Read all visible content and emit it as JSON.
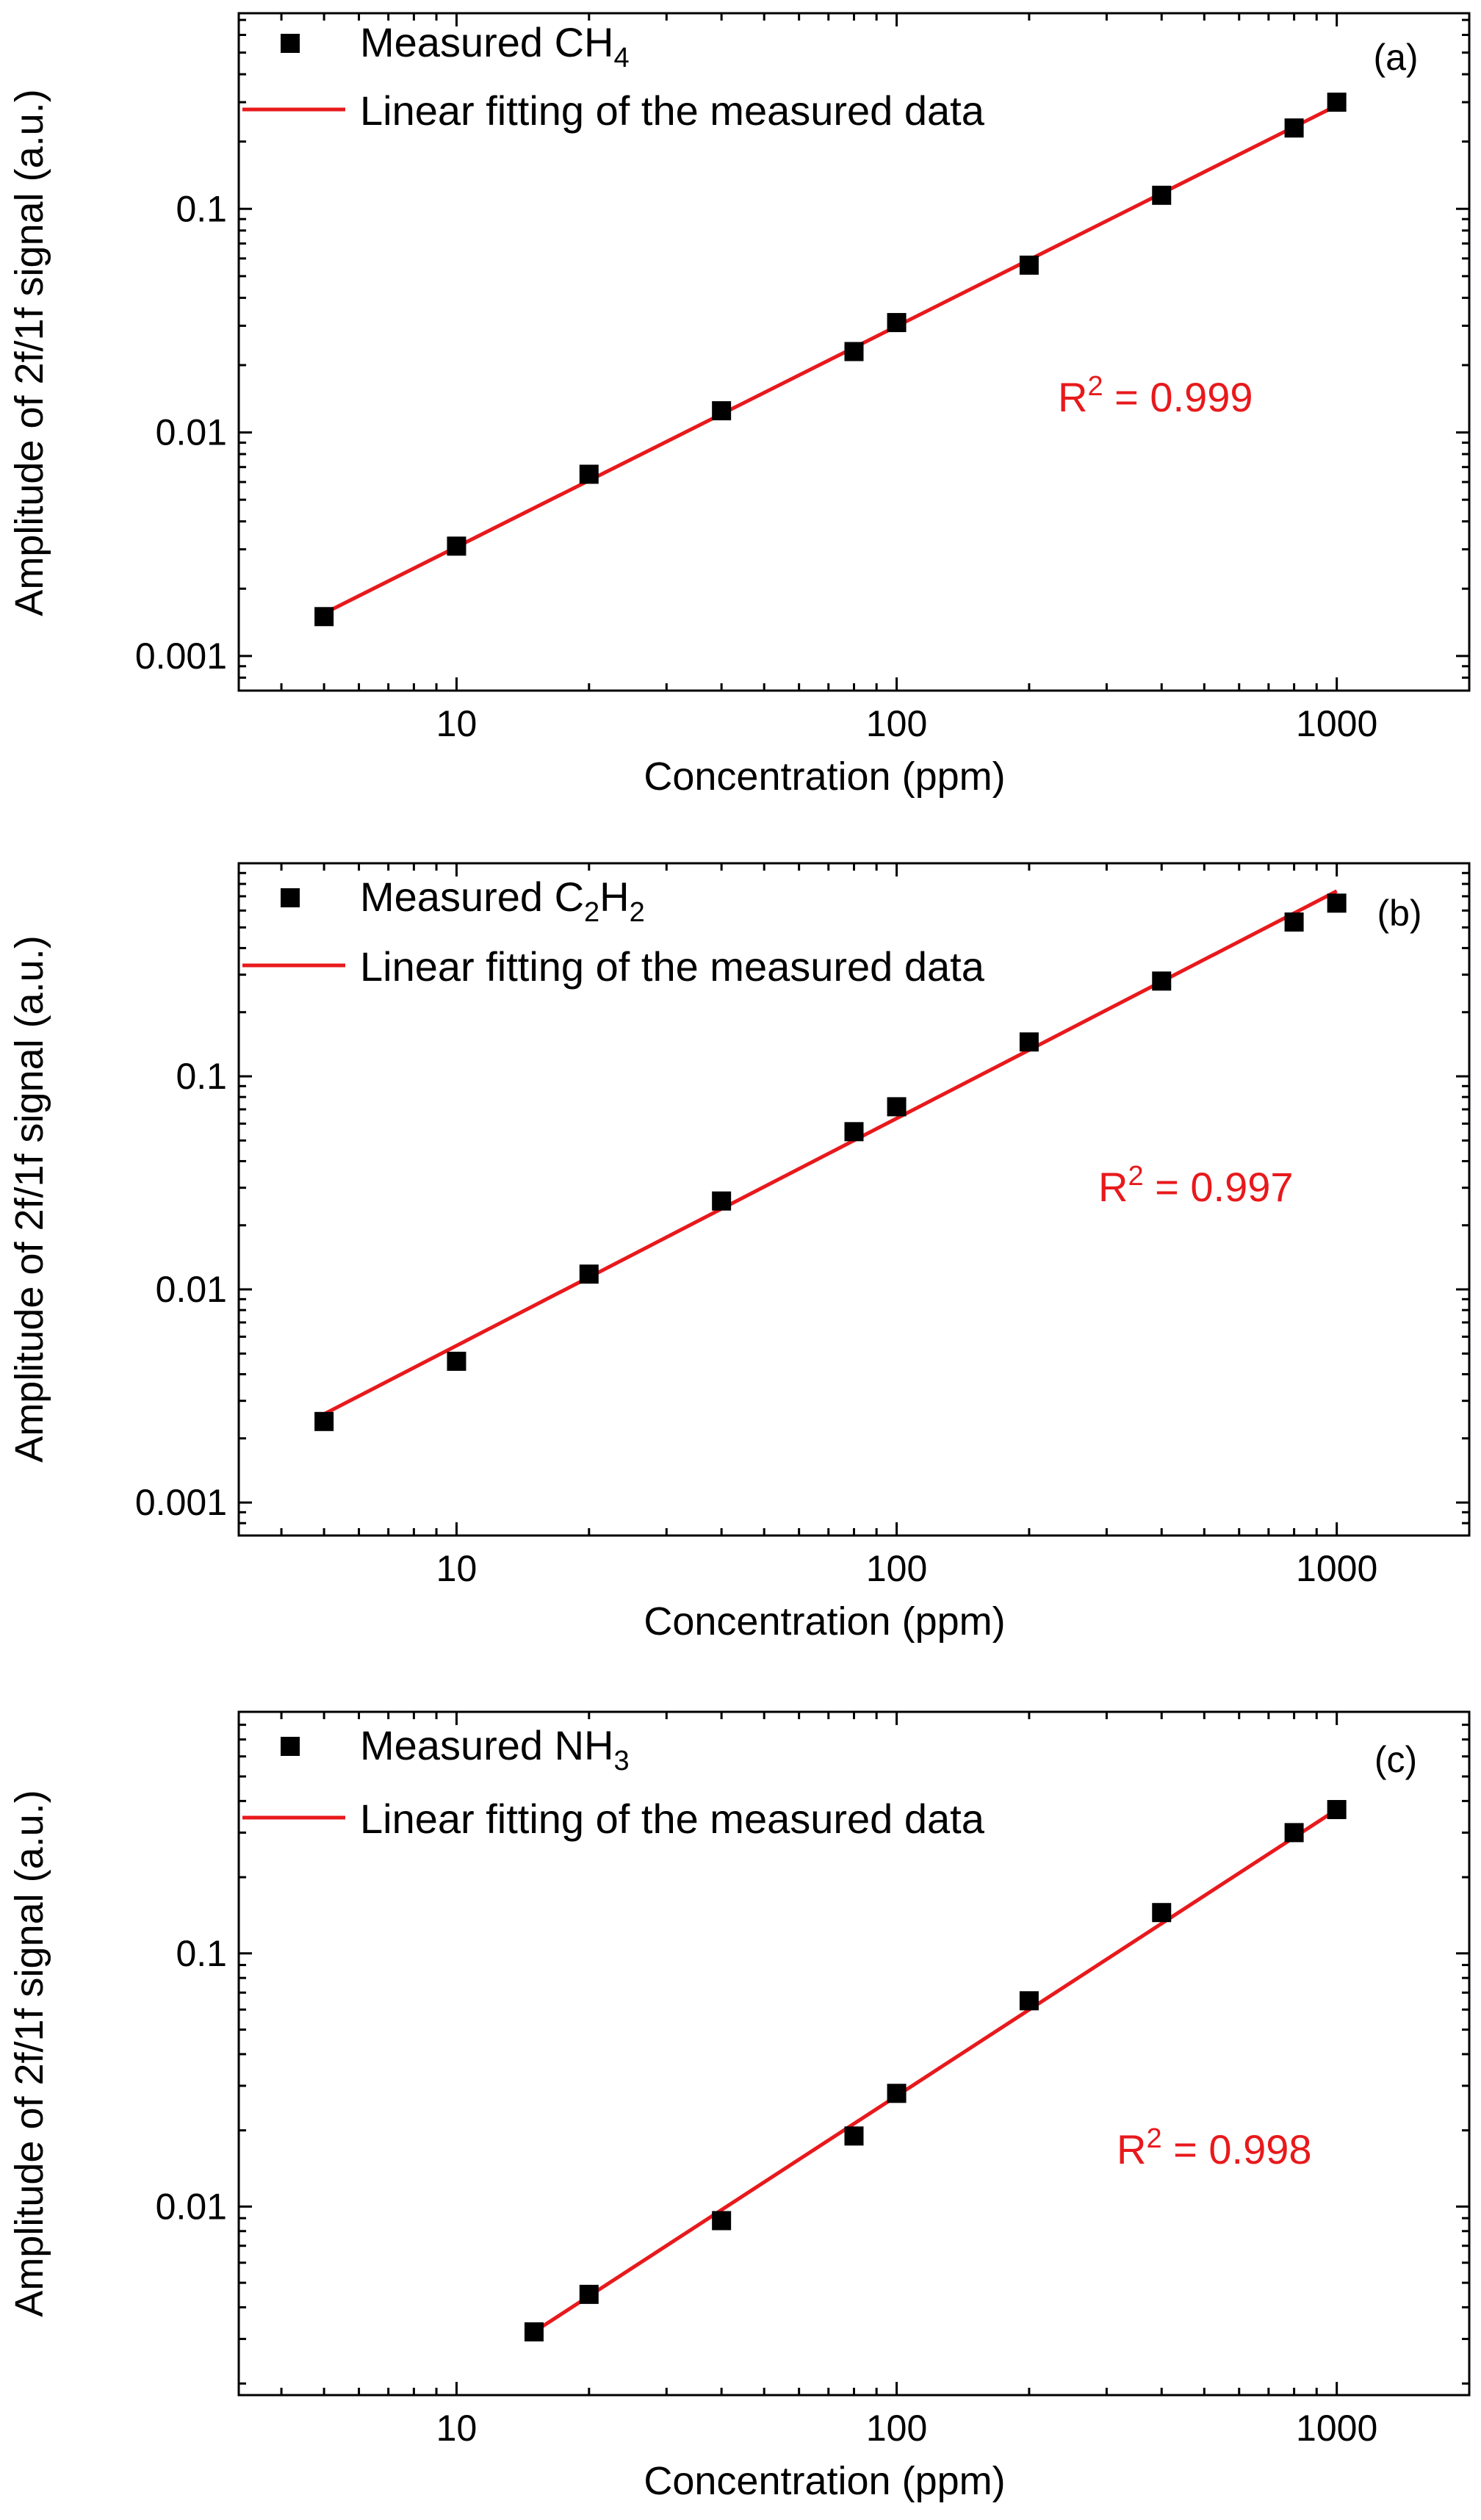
{
  "chart_data": [
    {
      "type": "scatter",
      "panel_label": "(a)",
      "xlabel": "Concentration (ppm)",
      "ylabel": "Amplitude of 2f/1f signal (a.u.)",
      "xscale": "log",
      "yscale": "log",
      "xlim": [
        3.2,
        2000
      ],
      "ylim": [
        0.0007,
        0.75
      ],
      "xticks": [
        10,
        100,
        1000
      ],
      "xtick_labels": [
        "10",
        "100",
        "1000"
      ],
      "yticks": [
        0.001,
        0.01,
        0.1
      ],
      "ytick_labels": [
        "0.001",
        "0.01",
        "0.1"
      ],
      "legend": {
        "position": "top-left",
        "marker_entry": {
          "prefix": "Measured CH",
          "sub": "4",
          "mid": "",
          "sub2": ""
        },
        "line_entry": "Linear fitting of the measured data"
      },
      "annotation": {
        "text": "R",
        "sup": "2",
        "rest": " = 0.999",
        "color": "#e8191c"
      },
      "series": [
        {
          "name": "Measured CH4",
          "kind": "markers",
          "x": [
            5,
            10,
            20,
            40,
            80,
            100,
            200,
            400,
            800,
            1000
          ],
          "y": [
            0.0015,
            0.0031,
            0.0065,
            0.0125,
            0.023,
            0.031,
            0.056,
            0.115,
            0.23,
            0.3
          ]
        },
        {
          "name": "Linear fitting of the measured data",
          "kind": "line",
          "x": [
            5,
            1000
          ],
          "y": [
            0.00155,
            0.29
          ],
          "color": "#e8191c"
        }
      ]
    },
    {
      "type": "scatter",
      "panel_label": "(b)",
      "xlabel": "Concentration (ppm)",
      "ylabel": "Amplitude of 2f/1f signal (a.u.)",
      "xscale": "log",
      "yscale": "log",
      "xlim": [
        3.2,
        2000
      ],
      "ylim": [
        0.0007,
        1.0
      ],
      "xticks": [
        10,
        100,
        1000
      ],
      "xtick_labels": [
        "10",
        "100",
        "1000"
      ],
      "yticks": [
        0.001,
        0.01,
        0.1
      ],
      "ytick_labels": [
        "0.001",
        "0.01",
        "0.1"
      ],
      "legend": {
        "position": "top-left",
        "marker_entry": {
          "prefix": "Measured C",
          "sub": "2",
          "mid": "H",
          "sub2": "2"
        },
        "line_entry": "Linear fitting of the measured data"
      },
      "annotation": {
        "text": "R",
        "sup": "2",
        "rest": " = 0.997",
        "color": "#e8191c"
      },
      "series": [
        {
          "name": "Measured C2H2",
          "kind": "markers",
          "x": [
            5,
            10,
            20,
            40,
            80,
            100,
            200,
            400,
            800,
            1000
          ],
          "y": [
            0.0024,
            0.0046,
            0.0118,
            0.026,
            0.055,
            0.072,
            0.145,
            0.28,
            0.53,
            0.65
          ]
        },
        {
          "name": "Linear fitting of the measured data",
          "kind": "line",
          "x": [
            5,
            1000
          ],
          "y": [
            0.0026,
            0.74
          ],
          "color": "#e8191c"
        }
      ]
    },
    {
      "type": "scatter",
      "panel_label": "(c)",
      "xlabel": "Concentration (ppm)",
      "ylabel": "Amplitude of 2f/1f signal (a.u.)",
      "xscale": "log",
      "yscale": "log",
      "xlim": [
        3.2,
        2000
      ],
      "ylim": [
        0.0018,
        0.9
      ],
      "xticks": [
        10,
        100,
        1000
      ],
      "xtick_labels": [
        "10",
        "100",
        "1000"
      ],
      "yticks": [
        0.01,
        0.1
      ],
      "ytick_labels": [
        "0.01",
        "0.1"
      ],
      "legend": {
        "position": "top-left",
        "marker_entry": {
          "prefix": "Measured NH",
          "sub": "3",
          "mid": "",
          "sub2": ""
        },
        "line_entry": "Linear fitting of the measured data"
      },
      "annotation": {
        "text": "R",
        "sup": "2",
        "rest": " = 0.998",
        "color": "#e8191c"
      },
      "series": [
        {
          "name": "Measured NH3",
          "kind": "markers",
          "x": [
            15,
            20,
            40,
            80,
            100,
            200,
            400,
            800,
            1000
          ],
          "y": [
            0.0032,
            0.0045,
            0.0088,
            0.019,
            0.028,
            0.065,
            0.145,
            0.3,
            0.37
          ]
        },
        {
          "name": "Linear fitting of the measured data",
          "kind": "line",
          "x": [
            15,
            1000
          ],
          "y": [
            0.0032,
            0.37
          ],
          "color": "#e8191c"
        }
      ]
    }
  ]
}
